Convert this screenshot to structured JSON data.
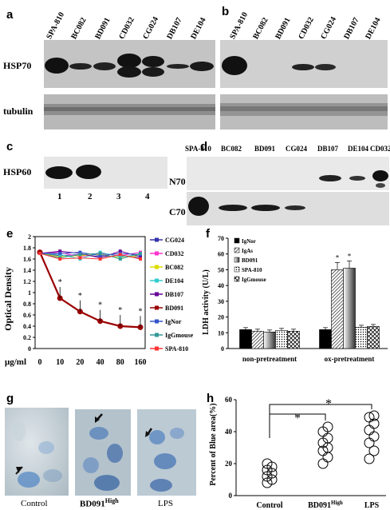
{
  "panel_labels": {
    "a": "a",
    "b": "b",
    "c": "c",
    "d": "d",
    "e": "e",
    "f": "f",
    "g": "g",
    "h": "h"
  },
  "panel_a": {
    "lanes": [
      "SPA-810",
      "BC082",
      "BD091",
      "CD032",
      "CG024",
      "DB107",
      "DE104"
    ],
    "row_labels": [
      "HSP70",
      "tubulin"
    ]
  },
  "panel_b": {
    "lanes": [
      "SPA-810",
      "BC082",
      "BD091",
      "CD032",
      "CG024",
      "DB107",
      "DE104"
    ]
  },
  "panel_c": {
    "row_label": "HSP60",
    "lanes": [
      "1",
      "2",
      "3",
      "4"
    ]
  },
  "panel_d": {
    "lanes": [
      "SPA-810",
      "BC082",
      "BD091",
      "CG024",
      "DB107",
      "DE104",
      "CD032"
    ],
    "row_labels": [
      "N70",
      "C70"
    ]
  },
  "chart_data": [
    {
      "type": "line",
      "panel": "e",
      "ylabel": "Optical Density",
      "xlabel": "μg/ml",
      "x": [
        "0",
        "10",
        "20",
        "40",
        "80",
        "160"
      ],
      "ylim": [
        0,
        2
      ],
      "yticks": [
        "0",
        "0.2",
        "0.4",
        "0.6",
        "0.8",
        "1",
        "1.2",
        "1.4",
        "1.6",
        "1.8",
        "2"
      ],
      "series": [
        {
          "name": "CG024",
          "color": "#3333aa",
          "values": [
            1.7,
            1.66,
            1.68,
            1.64,
            1.66,
            1.62
          ]
        },
        {
          "name": "CD032",
          "color": "#ff33cc",
          "values": [
            1.7,
            1.72,
            1.64,
            1.7,
            1.66,
            1.72
          ]
        },
        {
          "name": "BC082",
          "color": "#dddd00",
          "values": [
            1.7,
            1.64,
            1.66,
            1.68,
            1.62,
            1.66
          ]
        },
        {
          "name": "DE104",
          "color": "#33cccc",
          "values": [
            1.7,
            1.68,
            1.6,
            1.72,
            1.64,
            1.68
          ]
        },
        {
          "name": "DB107",
          "color": "#660099",
          "values": [
            1.7,
            1.74,
            1.7,
            1.62,
            1.74,
            1.64
          ]
        },
        {
          "name": "BD091",
          "color": "#990000",
          "values": [
            1.72,
            0.9,
            0.66,
            0.49,
            0.4,
            0.38
          ]
        },
        {
          "name": "IgNor",
          "color": "#3355cc",
          "values": [
            1.7,
            1.7,
            1.72,
            1.66,
            1.7,
            1.68
          ]
        },
        {
          "name": "IgGmouse",
          "color": "#339999",
          "values": [
            1.7,
            1.62,
            1.68,
            1.7,
            1.6,
            1.7
          ]
        },
        {
          "name": "SPA-810",
          "color": "#ff3333",
          "values": [
            1.7,
            1.6,
            1.62,
            1.6,
            1.68,
            1.6
          ]
        }
      ],
      "significance": [
        "*",
        "*",
        "*",
        "*",
        "*"
      ]
    },
    {
      "type": "bar",
      "panel": "f",
      "ylabel": "LDH activity (U/L)",
      "categories": [
        "non-pretreatment",
        "ox-pretreatment"
      ],
      "ylim": [
        0,
        70
      ],
      "yticks": [
        "0",
        "10",
        "20",
        "30",
        "40",
        "50",
        "60",
        "70"
      ],
      "series": [
        {
          "name": "IgNor",
          "values": [
            12,
            12
          ]
        },
        {
          "name": "IgAs",
          "values": [
            11,
            50
          ]
        },
        {
          "name": "BD091",
          "values": [
            10.5,
            51
          ]
        },
        {
          "name": "SPA-810",
          "values": [
            11.5,
            13.5
          ]
        },
        {
          "name": "IgGmouse",
          "values": [
            11,
            14
          ]
        }
      ],
      "significance": [
        "*",
        "*"
      ]
    },
    {
      "type": "scatter",
      "panel": "h",
      "ylabel": "Percent of Blue area(%)",
      "categories": [
        "Control",
        "BD091",
        "LPS"
      ],
      "category_superscripts": [
        "",
        "High",
        ""
      ],
      "ylim": [
        0,
        60
      ],
      "yticks": [
        "0",
        "20",
        "40",
        "60"
      ],
      "points": [
        [
          8,
          10,
          12,
          14,
          16,
          18,
          20
        ],
        [
          20,
          24,
          28,
          30,
          33,
          36,
          40,
          43
        ],
        [
          23,
          28,
          33,
          37,
          41,
          45,
          49,
          50
        ]
      ],
      "significance": [
        "*",
        "*"
      ]
    }
  ],
  "panel_g": {
    "captions": [
      "Control",
      "BD091",
      "LPS"
    ],
    "superscripts": [
      "",
      "High",
      ""
    ]
  }
}
